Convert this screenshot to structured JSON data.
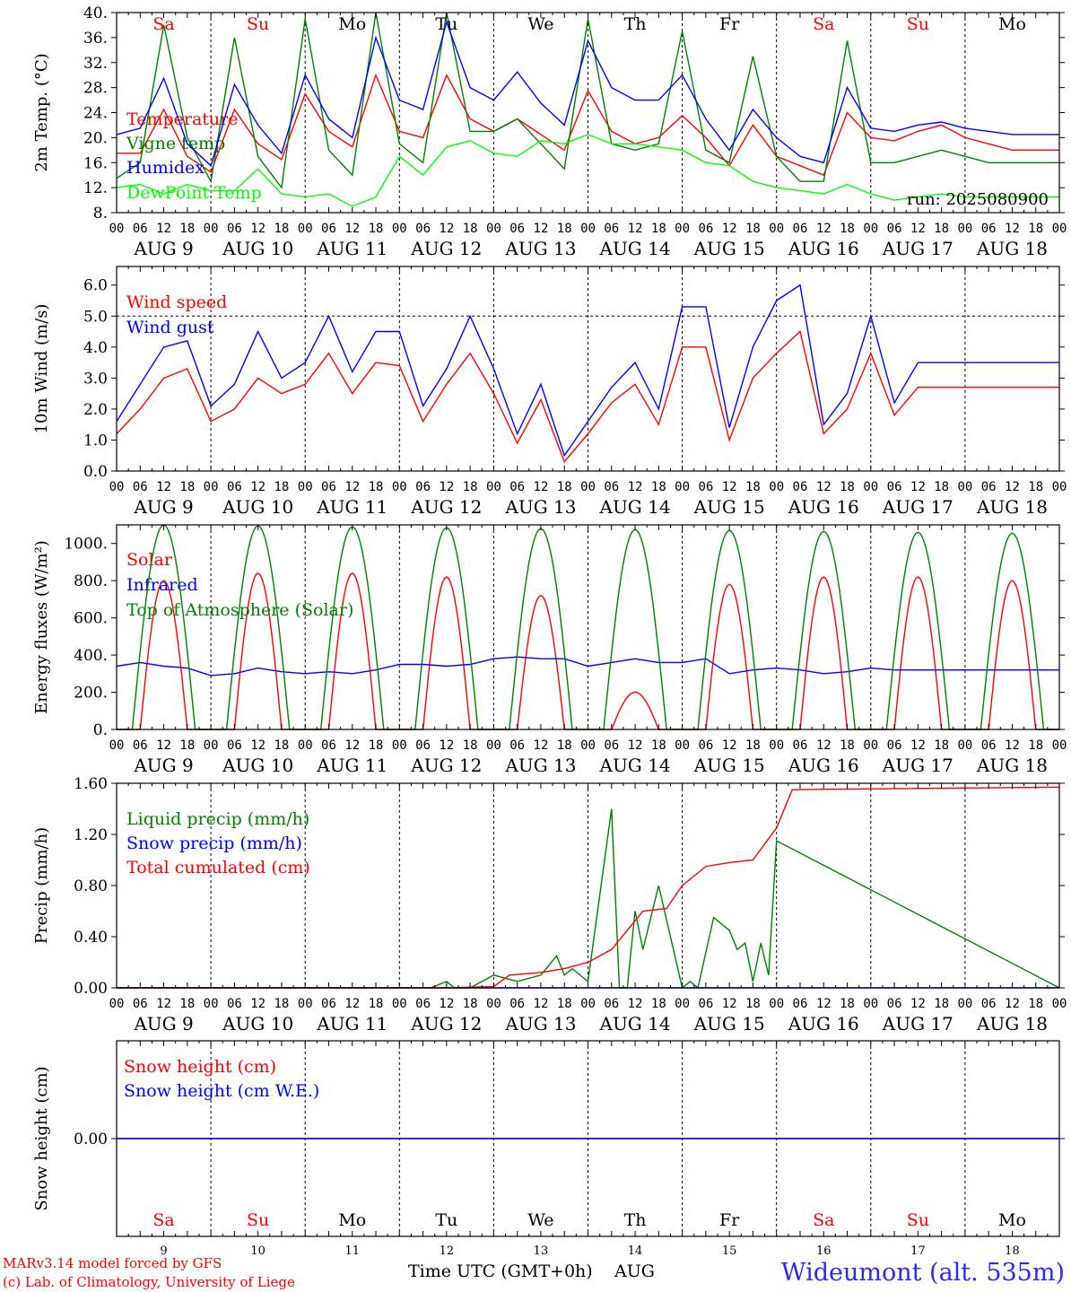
{
  "days": [
    "Sa",
    "Su",
    "Mo",
    "Tu",
    "We",
    "Th",
    "Fr",
    "Sa",
    "Su",
    "Mo"
  ],
  "day_colors": [
    "#ff0000",
    "#ff0000",
    "#000000",
    "#000000",
    "#000000",
    "#000000",
    "#000000",
    "#ff0000",
    "#ff0000",
    "#000000"
  ],
  "dates": [
    "AUG  9",
    "AUG 10",
    "AUG 11",
    "AUG 12",
    "AUG 13",
    "AUG 14",
    "AUG 15",
    "AUG 16",
    "AUG 17",
    "AUG 18"
  ],
  "date_nums": [
    "9",
    "10",
    "11",
    "12",
    "13",
    "14",
    "15",
    "16",
    "17",
    "18"
  ],
  "hour_ticks": [
    "00",
    "06",
    "12",
    "18"
  ],
  "hour_end": "00",
  "run_label": "run: 2025080900",
  "footer": {
    "model": "MARv3.14 model forced by GFS",
    "lab": "(c) Lab. of Climatology, University of Liege",
    "axis": "Time UTC (GMT+0h)",
    "month": "AUG",
    "station": "Wideumont (alt. 535m)"
  },
  "chart_data": [
    {
      "type": "line",
      "ylabel": "2m Temp. (°C)",
      "ylim": [
        8,
        40
      ],
      "yticks": [
        "8.",
        "12.",
        "16.",
        "20.",
        "24.",
        "28.",
        "32.",
        "36.",
        "40."
      ],
      "ytick_values": [
        8,
        12,
        16,
        20,
        24,
        28,
        32,
        36,
        40
      ],
      "series": [
        {
          "name": "Temperature",
          "color": "#ff0000",
          "x": [
            0,
            6,
            12,
            18,
            24,
            30,
            36,
            42,
            48,
            54,
            60,
            66,
            72,
            78,
            84,
            90,
            96,
            102,
            108,
            114,
            120,
            126,
            132,
            138,
            144,
            150,
            156,
            162,
            168,
            174,
            180,
            186,
            192,
            198,
            204,
            210,
            216,
            222,
            228,
            234,
            240
          ],
          "values": [
            17.5,
            17.5,
            24.5,
            17,
            14.5,
            24.5,
            19,
            16.5,
            27,
            21,
            18.5,
            30,
            21,
            20,
            30,
            23,
            21,
            23,
            20.5,
            18,
            27.5,
            21,
            19,
            20,
            23.5,
            20,
            15.5,
            22,
            17,
            15.5,
            14,
            24,
            20,
            19.5,
            21,
            22,
            20,
            19,
            18,
            18,
            18
          ]
        },
        {
          "name": "Vigne temp",
          "color": "#008000",
          "x": [
            0,
            6,
            12,
            18,
            24,
            30,
            36,
            42,
            48,
            54,
            60,
            66,
            72,
            78,
            84,
            90,
            96,
            102,
            108,
            114,
            120,
            126,
            132,
            138,
            144,
            150,
            156,
            162,
            168,
            174,
            180,
            186,
            192,
            198,
            204,
            210,
            216,
            222,
            228,
            234,
            240
          ],
          "values": [
            13.5,
            16,
            38,
            20,
            13,
            36,
            17,
            12,
            39,
            18,
            14,
            40,
            19,
            16,
            40,
            21,
            21,
            23,
            19,
            15,
            39,
            19,
            18,
            19,
            37,
            18,
            16,
            33,
            17,
            13,
            13,
            35.5,
            16,
            16,
            17,
            18,
            17,
            16,
            16,
            16,
            16
          ]
        },
        {
          "name": "Humidex",
          "color": "#0000ff",
          "x": [
            0,
            6,
            12,
            18,
            24,
            30,
            36,
            42,
            48,
            54,
            60,
            66,
            72,
            78,
            84,
            90,
            96,
            102,
            108,
            114,
            120,
            126,
            132,
            138,
            144,
            150,
            156,
            162,
            168,
            174,
            180,
            186,
            192,
            198,
            204,
            210,
            216,
            222,
            228,
            234,
            240
          ],
          "values": [
            20.5,
            21.5,
            29.5,
            19,
            15.5,
            28.5,
            22,
            17.5,
            30,
            23,
            20,
            36,
            26,
            24.5,
            38.5,
            28,
            26,
            30.5,
            25.5,
            22,
            35.5,
            28,
            26,
            26,
            30,
            23,
            18,
            24.5,
            20,
            17,
            16,
            28,
            21.5,
            21,
            22,
            22.5,
            21.5,
            21,
            20.5,
            20.5,
            20.5
          ]
        },
        {
          "name": "DewPoint Temp",
          "color": "#00ff00",
          "x": [
            0,
            6,
            12,
            18,
            24,
            30,
            36,
            42,
            48,
            54,
            60,
            66,
            72,
            78,
            84,
            90,
            96,
            102,
            108,
            114,
            120,
            126,
            132,
            138,
            144,
            150,
            156,
            162,
            168,
            174,
            180,
            186,
            192,
            198,
            204,
            210,
            216,
            222,
            228,
            234,
            240
          ],
          "values": [
            12,
            12.5,
            11,
            12.5,
            11.5,
            11.5,
            15,
            11,
            10.5,
            11,
            9,
            10.5,
            17,
            14,
            18.5,
            19.5,
            17.5,
            17,
            19.5,
            19,
            20.5,
            19,
            19,
            18.5,
            18,
            16,
            15.5,
            13,
            12,
            11.5,
            11,
            12.5,
            11,
            10,
            10.5,
            11,
            10.5,
            10.5,
            10.5,
            10.5,
            10.5
          ]
        }
      ],
      "hline": null
    },
    {
      "type": "line",
      "ylabel": "10m Wind (m/s)",
      "ylim": [
        0,
        6.6
      ],
      "yticks": [
        "0.0",
        "1.0",
        "2.0",
        "3.0",
        "4.0",
        "5.0",
        "6.0"
      ],
      "ytick_values": [
        0,
        1,
        2,
        3,
        4,
        5,
        6
      ],
      "hline": 5,
      "series": [
        {
          "name": "Wind speed",
          "color": "#ff0000",
          "x": [
            0,
            6,
            12,
            18,
            24,
            30,
            36,
            42,
            48,
            54,
            60,
            66,
            72,
            78,
            84,
            90,
            96,
            102,
            108,
            114,
            120,
            126,
            132,
            138,
            144,
            150,
            156,
            162,
            168,
            174,
            180,
            186,
            192,
            198,
            204,
            210,
            216,
            222,
            228,
            234,
            240
          ],
          "values": [
            1.2,
            2,
            3,
            3.3,
            1.6,
            2,
            3,
            2.5,
            2.8,
            3.8,
            2.5,
            3.5,
            3.4,
            1.6,
            2.8,
            3.8,
            2.5,
            0.9,
            2.3,
            0.3,
            1.2,
            2.2,
            2.8,
            1.5,
            4,
            4,
            1,
            3,
            3.8,
            4.5,
            1.2,
            2,
            3.8,
            1.8,
            2.7,
            2.7,
            2.7,
            2.7,
            2.7,
            2.7,
            2.7
          ]
        },
        {
          "name": "Wind gust",
          "color": "#0000ff",
          "x": [
            0,
            6,
            12,
            18,
            24,
            30,
            36,
            42,
            48,
            54,
            60,
            66,
            72,
            78,
            84,
            90,
            96,
            102,
            108,
            114,
            120,
            126,
            132,
            138,
            144,
            150,
            156,
            162,
            168,
            174,
            180,
            186,
            192,
            198,
            204,
            210,
            216,
            222,
            228,
            234,
            240
          ],
          "values": [
            1.6,
            2.8,
            4,
            4.2,
            2.1,
            2.8,
            4.5,
            3,
            3.5,
            5,
            3.2,
            4.5,
            4.5,
            2.1,
            3.3,
            5,
            3.3,
            1.2,
            2.8,
            0.5,
            1.6,
            2.7,
            3.5,
            2,
            5.3,
            5.3,
            1.4,
            4,
            5.5,
            6,
            1.5,
            2.5,
            5,
            2.2,
            3.5,
            3.5,
            3.5,
            3.5,
            3.5,
            3.5,
            3.5
          ]
        }
      ]
    },
    {
      "type": "line",
      "ylabel": "Energy fluxes (W/m²)",
      "ylim": [
        0,
        1100
      ],
      "yticks": [
        "0.",
        "200.",
        "400.",
        "600.",
        "800.",
        "1000."
      ],
      "ytick_values": [
        0,
        200,
        400,
        600,
        800,
        1000
      ],
      "hline": null,
      "series": [
        {
          "name": "Solar",
          "color": "#ff0000",
          "peaks": [
            800,
            840,
            840,
            820,
            720,
            200,
            780,
            820,
            820,
            800
          ],
          "x": [],
          "values": []
        },
        {
          "name": "Infrared",
          "color": "#0000ff",
          "x": [
            0,
            6,
            12,
            18,
            24,
            30,
            36,
            42,
            48,
            54,
            60,
            66,
            72,
            78,
            84,
            90,
            96,
            102,
            108,
            114,
            120,
            126,
            132,
            138,
            144,
            150,
            156,
            162,
            168,
            174,
            180,
            186,
            192,
            198,
            204,
            210,
            216,
            222,
            228,
            234,
            240
          ],
          "values": [
            340,
            360,
            340,
            330,
            290,
            300,
            330,
            310,
            300,
            310,
            300,
            320,
            350,
            350,
            340,
            350,
            380,
            390,
            380,
            380,
            340,
            360,
            380,
            360,
            360,
            380,
            300,
            320,
            330,
            320,
            300,
            310,
            330,
            320,
            320,
            320,
            320,
            320,
            320,
            320,
            320
          ]
        },
        {
          "name": "Top of Atmosphere (Solar)",
          "color": "#008000",
          "peaks": [
            1100,
            1095,
            1090,
            1085,
            1080,
            1075,
            1070,
            1065,
            1060,
            1055
          ],
          "x": [],
          "values": []
        }
      ]
    },
    {
      "type": "line",
      "ylabel": "Precip (mm/h)",
      "ylim": [
        0,
        1.6
      ],
      "yticks": [
        "0.00",
        "0.40",
        "0.80",
        "1.20",
        "1.60"
      ],
      "ytick_values": [
        0,
        0.4,
        0.8,
        1.2,
        1.6
      ],
      "hline": null,
      "series": [
        {
          "name": "Liquid precip (mm/h)",
          "color": "#008000",
          "x": [
            0,
            80,
            84,
            86,
            90,
            96,
            102,
            108,
            112,
            114,
            116,
            120,
            126,
            128,
            130,
            132,
            134,
            138,
            144,
            146,
            148,
            152,
            156,
            158,
            160,
            162,
            164,
            166,
            168,
            240
          ],
          "values": [
            0,
            0,
            0.05,
            0,
            0,
            0.1,
            0.05,
            0.1,
            0.25,
            0.1,
            0.15,
            0.05,
            1.4,
            0,
            0,
            0.6,
            0.3,
            0.8,
            0,
            0.05,
            0,
            0.55,
            0.45,
            0.3,
            0.35,
            0.05,
            0.35,
            0.1,
            1.15,
            0
          ]
        },
        {
          "name": "Snow precip (mm/h)",
          "color": "#0000ff",
          "x": [
            0,
            240
          ],
          "values": [
            0,
            0
          ]
        },
        {
          "name": "Total cumulated (cm)",
          "color": "#ff0000",
          "x": [
            0,
            84,
            96,
            100,
            108,
            114,
            120,
            126,
            134,
            140,
            144,
            150,
            156,
            162,
            168,
            172,
            240
          ],
          "values": [
            0,
            0,
            0.01,
            0.1,
            0.12,
            0.15,
            0.2,
            0.3,
            0.6,
            0.62,
            0.8,
            0.95,
            0.98,
            1.0,
            1.25,
            1.55,
            1.57
          ]
        }
      ]
    },
    {
      "type": "line",
      "ylabel": "Snow height (cm)",
      "ylim": [
        -1,
        1
      ],
      "yticks": [
        "0.00"
      ],
      "ytick_values": [
        0
      ],
      "hline": null,
      "series": [
        {
          "name": "Snow height (cm)",
          "color": "#ff0000",
          "x": [
            0,
            240
          ],
          "values": [
            0,
            0
          ]
        },
        {
          "name": "Snow height (cm W.E.)",
          "color": "#0000ff",
          "x": [
            0,
            240
          ],
          "values": [
            0,
            0
          ]
        }
      ]
    }
  ]
}
